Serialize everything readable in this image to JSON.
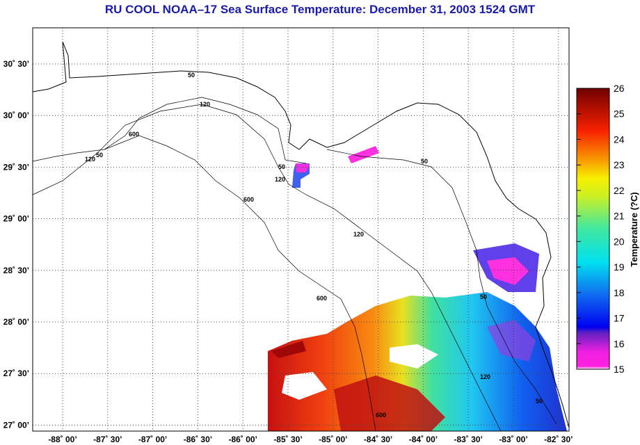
{
  "title": "RU COOL  NOAA–17  Sea Surface Temperature:  December 31, 2003 1524 GMT",
  "map": {
    "lat_labels": [
      "30˚ 30’",
      "30˚ 00’",
      "29˚ 30’",
      "29˚ 00’",
      "28˚ 30’",
      "28˚ 00’",
      "27˚ 30’",
      "27˚ 00’"
    ],
    "lon_labels": [
      "-88˚ 00’",
      "-87˚ 30’",
      "-87˚ 00’",
      "-86˚ 30’",
      "-86˚ 00’",
      "-85˚ 30’",
      "-85˚ 00’",
      "-84˚ 30’",
      "-84˚ 00’",
      "-83˚ 30’",
      "-83˚ 00’",
      "-82˚ 30’"
    ],
    "contour_labels": [
      "50",
      "120",
      "600",
      "50",
      "120",
      "50",
      "120",
      "600",
      "120",
      "600",
      "50",
      "50",
      "600",
      "120",
      "50"
    ]
  },
  "colorbar": {
    "label": "Temperature (?C)",
    "ticks": [
      "26",
      "25",
      "24",
      "23",
      "22",
      "21",
      "20",
      "19",
      "18",
      "17",
      "16",
      "15"
    ],
    "min": 15,
    "max": 26
  },
  "colors": {
    "title": "#1a1aa8"
  }
}
